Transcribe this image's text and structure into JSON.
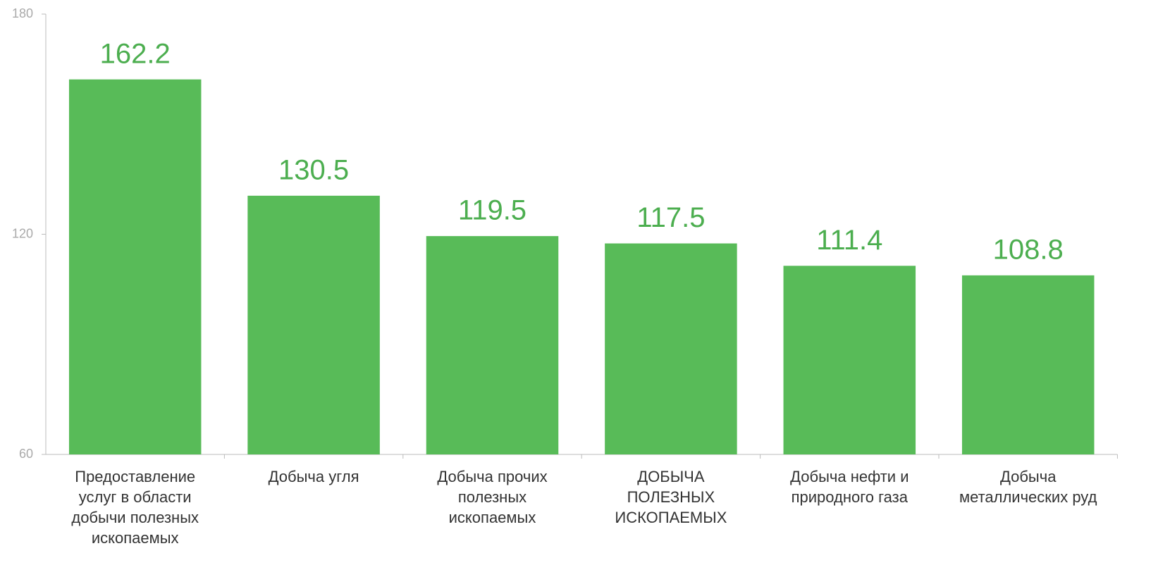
{
  "chart_data": {
    "type": "bar",
    "categories": [
      "Предоставление услуг в области добычи полезных ископаемых",
      "Добыча угля",
      "Добыча прочих полезных ископаемых",
      "ДОБЫЧА ПОЛЕЗНЫХ ИСКОПАЕМЫХ",
      "Добыча нефти и природного газа",
      "Добыча металлических руд"
    ],
    "values": [
      162.2,
      130.5,
      119.5,
      117.5,
      111.4,
      108.8
    ],
    "color": "#58bb58",
    "ylim": [
      60,
      180
    ],
    "yticks": [
      60,
      120,
      180
    ],
    "grid": false
  }
}
